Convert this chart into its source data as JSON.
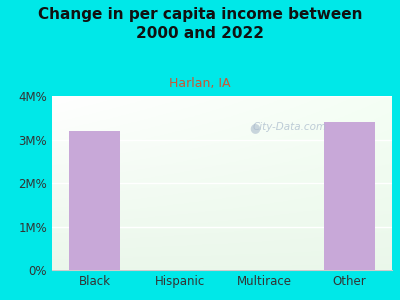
{
  "title": "Change in per capita income between\n2000 and 2022",
  "subtitle": "Harlan, IA",
  "categories": [
    "Black",
    "Hispanic",
    "Multirace",
    "Other"
  ],
  "values": [
    3.2,
    0.0,
    0.0,
    3.4
  ],
  "bar_color": "#c8a8d8",
  "background_color": "#00e8e8",
  "title_fontsize": 11,
  "subtitle_fontsize": 9,
  "subtitle_color": "#cc5533",
  "tick_label_fontsize": 8.5,
  "ylim": [
    0,
    4
  ],
  "yticks": [
    0,
    1,
    2,
    3,
    4
  ],
  "ytick_labels": [
    "0%",
    "1M%",
    "2M%",
    "3M%",
    "4M%"
  ],
  "watermark": "City-Data.com",
  "watermark_color": "#aabbcc"
}
